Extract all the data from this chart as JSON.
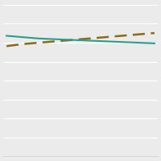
{
  "x_values": [
    0,
    1,
    2,
    3,
    4,
    5,
    6,
    7,
    8,
    9
  ],
  "solid_line": [
    1.75,
    1.73,
    1.71,
    1.7,
    1.69,
    1.68,
    1.67,
    1.66,
    1.65,
    1.64
  ],
  "dashed_line": [
    1.6,
    1.63,
    1.65,
    1.67,
    1.69,
    1.71,
    1.73,
    1.75,
    1.77,
    1.79
  ],
  "solid_color": "#2a9d8f",
  "dashed_color": "#8b6a14",
  "ylim": [
    0.0,
    2.2
  ],
  "xlim": [
    -0.2,
    9.2
  ],
  "background_color": "#ebebeb",
  "grid_color": "#ffffff",
  "n_gridlines": 8,
  "linewidth": 1.5,
  "dash_linewidth": 1.8,
  "figsize": [
    2.0,
    2.0
  ],
  "dpi": 100
}
